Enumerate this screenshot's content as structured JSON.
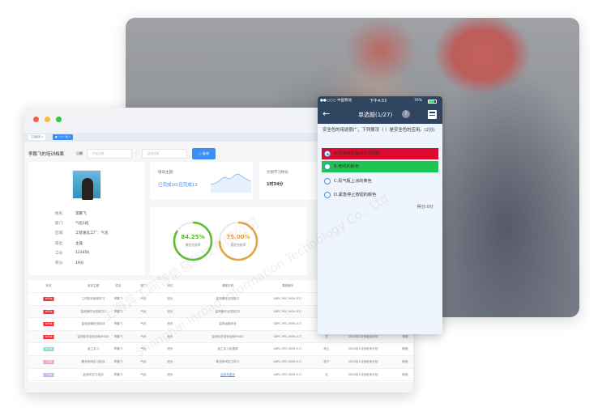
{
  "tabs": [
    {
      "label": "工具配置"
    },
    {
      "label": "一人一档"
    }
  ],
  "toolbar": {
    "title": "李鹏飞的培训档案",
    "date_label": "日期",
    "start_placeholder": "开始日期",
    "separator": "-",
    "end_placeholder": "结束日期",
    "search_label": "查询"
  },
  "profile": {
    "fields": [
      {
        "label": "姓名:",
        "value": "李鹏飞"
      },
      {
        "label": "部门:",
        "value": "气化1班"
      },
      {
        "label": "区域:",
        "value": "工智速化工厂：气化"
      },
      {
        "label": "岗位:",
        "value": "主操"
      },
      {
        "label": "工号:",
        "value": "123456"
      },
      {
        "label": "积分:",
        "value": "19分"
      }
    ]
  },
  "training": {
    "label": "培训主题:",
    "value": "已完成10/应完成12"
  },
  "plan": {
    "label": "计划学习时长",
    "value": "1时34分"
  },
  "rings": [
    {
      "value": "84.25%",
      "label": "课程完成率",
      "percent": 84.25,
      "color": "#5cbd2e"
    },
    {
      "value": "75.00%",
      "label": "测验合格率",
      "percent": 75,
      "color": "#e9a23b"
    }
  ],
  "table": {
    "headers": [
      "状态",
      "培训主题",
      "姓名",
      "部门",
      "岗位",
      "课程名称",
      "课程编号",
      "方式",
      "培训计划",
      ""
    ],
    "rows": [
      {
        "status": "未开始",
        "status_color": "#f5222d",
        "cells": [
          "工作胶料使用学习",
          "李鹏飞",
          "气化",
          "班长",
          "监测操作业务能力",
          "SBPC-PEC-MEH-017",
          "",
          "",
          ""
        ]
      },
      {
        "status": "未开始",
        "status_color": "#f5222d",
        "cells": [
          "监测操作业务能力2",
          "李鹏飞",
          "气化",
          "班长",
          "监测操作业务能力2",
          "SBPC-PEC-MEH-017",
          "",
          "",
          ""
        ]
      },
      {
        "status": "未开始",
        "status_color": "#f5222d",
        "cells": [
          "监测运输安全培训",
          "李鹏飞",
          "气化",
          "班长",
          "监测运输安全",
          "SBPC-PEC-MEH-017",
          "",
          "",
          ""
        ]
      },
      {
        "status": "未开始",
        "status_color": "#f5222d",
        "cells": [
          "监测化学品安全和MSDS",
          "李鹏飞",
          "气化",
          "班长",
          "监测化学品安全和MSDS",
          "SBPC-PEC-MEH-017",
          "无",
          "2020年1月份培训计划",
          "常规"
        ]
      },
      {
        "status": "进行中",
        "status_color": "#7fe0cf",
        "cells": [
          "金工实习",
          "李鹏飞",
          "气化",
          "班长",
          "金工实习实操课",
          "SBPC-PEC-MEH-017",
          "线上",
          "2020年1月份培训计划",
          "职能"
        ]
      },
      {
        "status": "已延期",
        "status_color": "#f59ac0",
        "cells": [
          "氧化车间实习培训",
          "李鹏飞",
          "气化",
          "班长",
          "氧化车间实习学习",
          "SBPC-PEC-MEH-017",
          "线下",
          "2020年1月份培训计划",
          "职能"
        ]
      },
      {
        "status": "已完成",
        "status_color": "#b7b7f5",
        "cells": [
          "监测车实习培训",
          "李鹏飞",
          "气化",
          "班长",
          "监测车复训",
          "SBPC-PEC-MEH-017",
          "无",
          "2020年1月份培训计划",
          "职能"
        ]
      }
    ]
  },
  "phone": {
    "carrier": "●●○○○ 中国移动",
    "time": "下午4:53",
    "battery": "76%",
    "title": "单选题(1/27)",
    "help": "?",
    "question": "安全色的用途很广，下列情况（ ）是安全色的应用。(2分)",
    "options": [
      {
        "label": "A.管道等设备的不同颜色",
        "state": "wrong",
        "color": "#dc0a2e",
        "selected": true
      },
      {
        "label": "B.电线的颜色",
        "state": "correct",
        "color": "#1cc653",
        "selected": false
      },
      {
        "label": "C.氮气瓶上涂的黄色",
        "state": "normal",
        "selected": false
      },
      {
        "label": "D.紧急停止按钮的颜色",
        "state": "normal",
        "selected": false
      }
    ],
    "score": "得分:0分"
  },
  "watermark": {
    "cn": "上海异工同智信息科技有限公司",
    "en": "Shanghai Inroad Information Technology Co., Ltd."
  }
}
